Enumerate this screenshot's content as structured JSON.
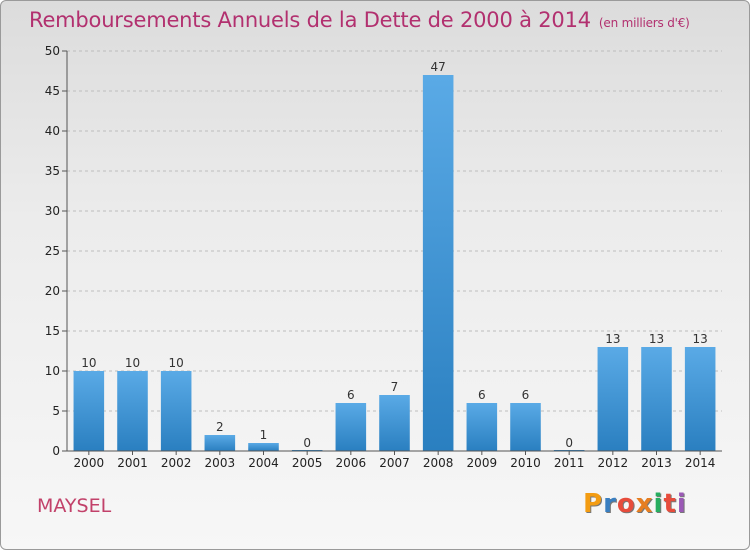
{
  "header": {
    "title": "Remboursements Annuels de la Dette de 2000 à 2014",
    "subtitle": "(en milliers d'€)"
  },
  "footer": {
    "commune": "MAYSEL",
    "logo_letters": [
      "P",
      "r",
      "o",
      "x",
      "i",
      "t",
      "i"
    ],
    "logo_colors": [
      "#f39c12",
      "#3a7fc1",
      "#e74c3c",
      "#e67e22",
      "#27ae60",
      "#e74c3c",
      "#9b59b6"
    ]
  },
  "colors": {
    "bar_top": "#5aaae6",
    "bar_bottom": "#2a7fc0",
    "grid": "#bdbdbd",
    "axis": "#555555"
  },
  "chart_data": {
    "type": "bar",
    "title": "Remboursements Annuels de la Dette de 2000 à 2014",
    "subtitle": "(en milliers d'€)",
    "categories": [
      "2000",
      "2001",
      "2002",
      "2003",
      "2004",
      "2005",
      "2006",
      "2007",
      "2008",
      "2009",
      "2010",
      "2011",
      "2012",
      "2013",
      "2014"
    ],
    "values": [
      10,
      10,
      10,
      2,
      1,
      0,
      6,
      7,
      47,
      6,
      6,
      0,
      13,
      13,
      13
    ],
    "data_labels": [
      "10",
      "10",
      "10",
      "2",
      "1",
      "0",
      "6",
      "7",
      "47",
      "6",
      "6",
      "0",
      "13",
      "13",
      "13"
    ],
    "yticks": [
      "0",
      "5",
      "10",
      "15",
      "20",
      "25",
      "30",
      "35",
      "40",
      "45",
      "50"
    ],
    "ylim": [
      0,
      50
    ],
    "grid": true,
    "legend": "none"
  }
}
